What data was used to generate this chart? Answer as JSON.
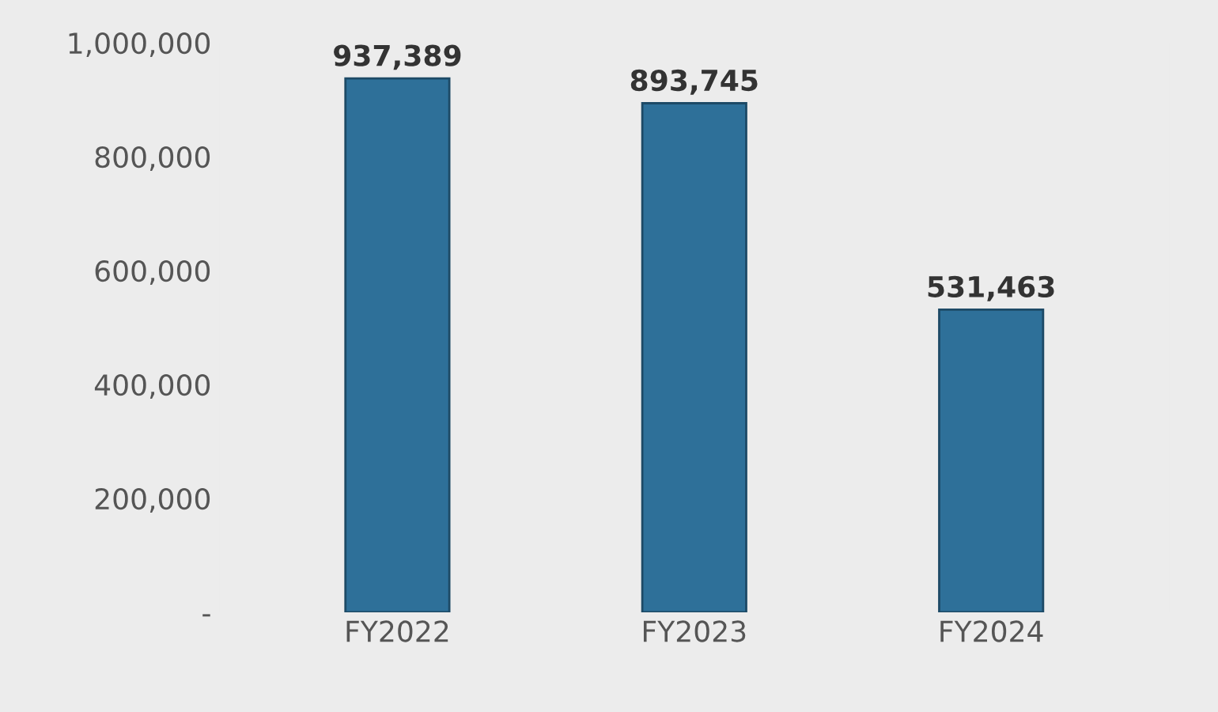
{
  "chart_data": {
    "type": "bar",
    "categories": [
      "FY2022",
      "FY2023",
      "FY2024"
    ],
    "values": [
      937389,
      893745,
      531463
    ],
    "value_labels": [
      "937,389",
      "893,745",
      "531,463"
    ],
    "color": "#2e7099",
    "ylim": [
      0,
      1000000
    ],
    "yticks": [
      {
        "value": 0,
        "label": "-"
      },
      {
        "value": 200000,
        "label": "200,000"
      },
      {
        "value": 400000,
        "label": "400,000"
      },
      {
        "value": 600000,
        "label": "600,000"
      },
      {
        "value": 800000,
        "label": "800,000"
      },
      {
        "value": 1000000,
        "label": "1,000,000"
      }
    ],
    "grid": false,
    "legend": false
  }
}
